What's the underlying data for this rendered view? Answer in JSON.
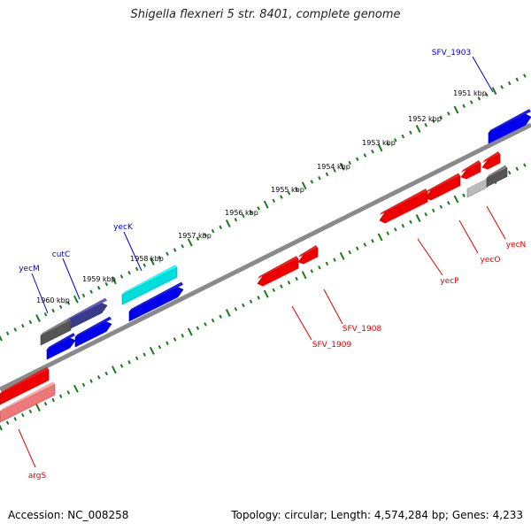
{
  "title": "Shigella flexneri 5 str. 8401, complete genome",
  "footer": {
    "accession": "Accession: NC_008258",
    "summary": "Topology: circular; Length: 4,574,284 bp; Genes: 4,233"
  },
  "colors": {
    "backbone": "#8a8a8a",
    "ruler": "#1b7a1b",
    "forward_label": "#0000cc",
    "reverse_label": "#dd0000"
  },
  "tick_labels": [
    "1951 kbp",
    "1952 kbp",
    "1953 kbp",
    "1954 kbp",
    "1955 kbp",
    "1956 kbp",
    "1957 kbp",
    "1958 kbp",
    "1959 kbp",
    "1960 kbp"
  ],
  "gene_labels": {
    "forward": [
      "SFV_1903",
      "yecK",
      "cutC",
      "yecM"
    ],
    "reverse": [
      "yecN",
      "yecO",
      "yecP",
      "SFV_1908",
      "SFV_1909",
      "argS"
    ]
  },
  "features": [
    {
      "strand": "forward",
      "color": "#0000ee",
      "arrow": true
    },
    {
      "strand": "forward",
      "color": "#00dddd",
      "arrow": false
    },
    {
      "strand": "forward",
      "color": "#0000ee",
      "arrow": true
    },
    {
      "strand": "forward",
      "color": "#3a3a8a",
      "arrow": true
    },
    {
      "strand": "forward",
      "color": "#0000ee",
      "arrow": true
    },
    {
      "strand": "forward",
      "color": "#0000ee",
      "arrow": true
    },
    {
      "strand": "forward",
      "color": "#555555",
      "arrow": false
    },
    {
      "strand": "reverse",
      "color": "#ee0000",
      "arrow": true
    },
    {
      "strand": "reverse",
      "color": "#ee0000",
      "arrow": true
    },
    {
      "strand": "reverse",
      "color": "#ee0000",
      "arrow": true
    },
    {
      "strand": "reverse",
      "color": "#ee0000",
      "arrow": true
    },
    {
      "strand": "reverse",
      "color": "#ee0000",
      "arrow": true
    },
    {
      "strand": "reverse",
      "color": "#bbbbbb",
      "arrow": false
    },
    {
      "strand": "reverse",
      "color": "#555555",
      "arrow": false
    },
    {
      "strand": "reverse",
      "color": "#ee0000",
      "arrow": true
    },
    {
      "strand": "reverse",
      "color": "#ee0000",
      "arrow": false
    },
    {
      "strand": "reverse",
      "color": "#ee7777",
      "arrow": false
    }
  ]
}
